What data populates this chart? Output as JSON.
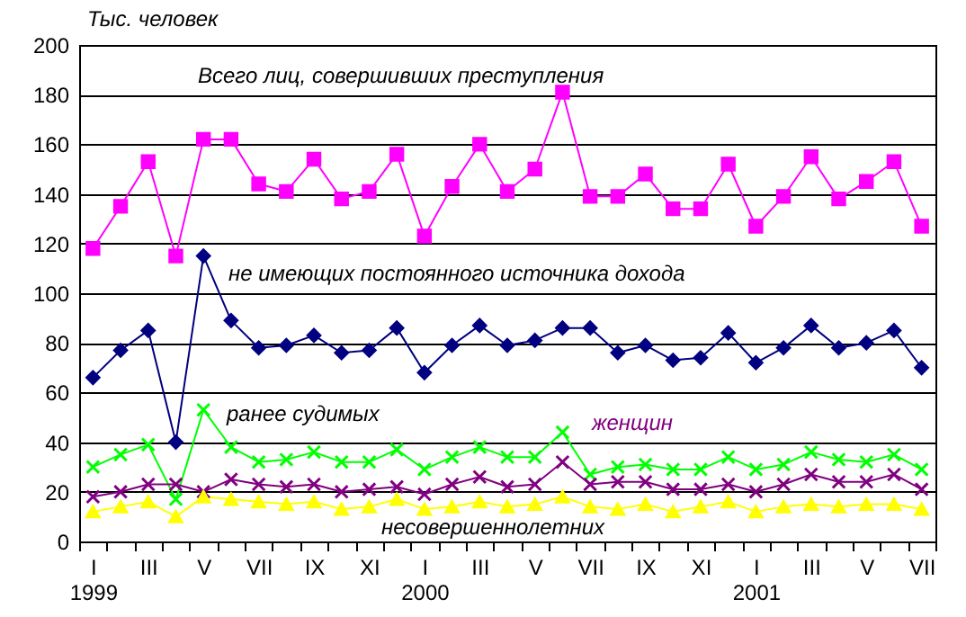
{
  "chart_data": {
    "type": "line",
    "ylabel": "Тыс. человек",
    "categories": [
      "I\n1999",
      null,
      "III",
      null,
      "V",
      null,
      "VII",
      null,
      "IX",
      null,
      "XI",
      null,
      "I\n2000",
      null,
      "III",
      null,
      "V",
      null,
      "VII",
      null,
      "IX",
      null,
      "XI",
      null,
      "I\n2001",
      null,
      "III",
      null,
      "V",
      null,
      "VII"
    ],
    "series": [
      {
        "name": "Всего лиц, совершивших преступления",
        "color": "#ff00ff",
        "marker": "square",
        "values": [
          118,
          135,
          153,
          115,
          162,
          162,
          144,
          141,
          154,
          138,
          141,
          156,
          123,
          143,
          160,
          141,
          150,
          181,
          139,
          139,
          148,
          134,
          134,
          152,
          127,
          139,
          155,
          138,
          145,
          153,
          127
        ]
      },
      {
        "name": "не имеющих постоянного источника дохода",
        "color": "#000080",
        "marker": "diamond",
        "values": [
          66,
          77,
          85,
          40,
          115,
          89,
          78,
          79,
          83,
          76,
          77,
          86,
          68,
          79,
          87,
          79,
          81,
          86,
          86,
          76,
          79,
          73,
          74,
          84,
          72,
          78,
          87,
          78,
          80,
          85,
          70
        ]
      },
      {
        "name": "ранее судимых",
        "color": "#00ff00",
        "marker": "cross",
        "values": [
          30,
          35,
          39,
          17,
          53,
          38,
          32,
          33,
          36,
          32,
          32,
          37,
          29,
          34,
          38,
          34,
          34,
          44,
          27,
          30,
          31,
          29,
          29,
          34,
          29,
          31,
          36,
          33,
          32,
          35,
          29
        ]
      },
      {
        "name": "женщин",
        "color": "#800080",
        "marker": "cross",
        "values": [
          18,
          20,
          23,
          23,
          20,
          25,
          23,
          22,
          23,
          20,
          21,
          22,
          19,
          23,
          26,
          22,
          23,
          32,
          23,
          24,
          24,
          21,
          21,
          23,
          20,
          23,
          27,
          24,
          24,
          27,
          21
        ]
      },
      {
        "name": "несовершеннолетних",
        "color": "#ffff00",
        "marker": "triangle",
        "values": [
          12,
          14,
          16,
          10,
          18,
          17,
          16,
          15,
          16,
          13,
          14,
          17,
          13,
          14,
          16,
          14,
          15,
          18,
          14,
          13,
          15,
          12,
          14,
          16,
          12,
          14,
          15,
          14,
          15,
          15,
          13
        ]
      }
    ],
    "ylim": [
      0,
      200
    ],
    "yticks": [
      0,
      20,
      40,
      60,
      80,
      100,
      120,
      140,
      160,
      180,
      200
    ],
    "grid": "y",
    "legend": false
  }
}
